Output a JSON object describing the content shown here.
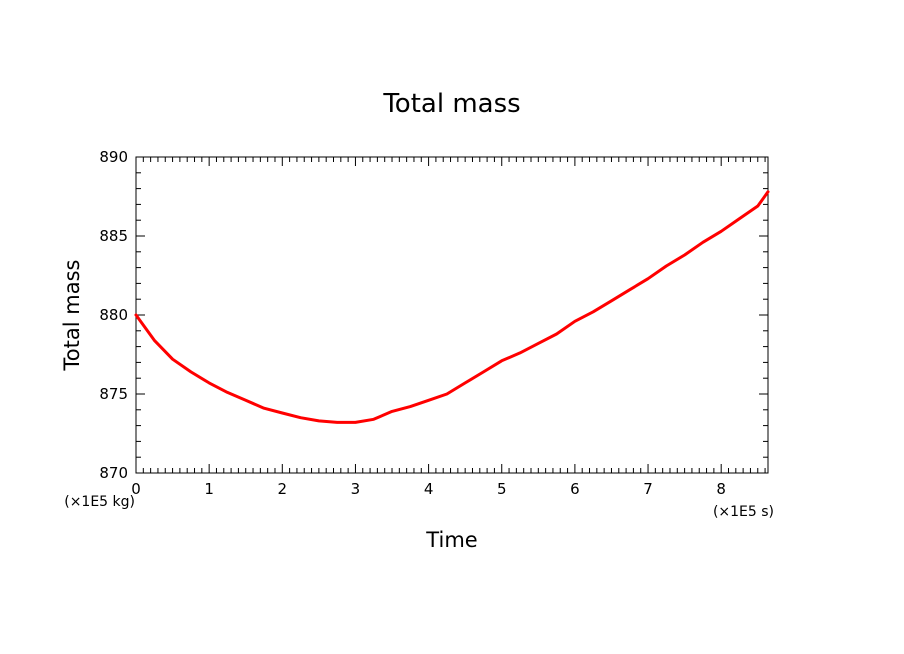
{
  "chart_data": {
    "type": "line",
    "title": "Total mass",
    "xlabel": "Time",
    "ylabel": "Total mass",
    "x_unit": "(×1E5 s)",
    "y_unit": "(×1E5 kg)",
    "xlim": [
      0,
      8.64
    ],
    "ylim": [
      870,
      890
    ],
    "x_ticks": [
      0,
      1,
      2,
      3,
      4,
      5,
      6,
      7,
      8
    ],
    "y_ticks": [
      870,
      875,
      880,
      885,
      890
    ],
    "grid": false,
    "line_color": "#ff0000",
    "series": [
      {
        "x": [
          0,
          0.25,
          0.5,
          0.75,
          1.0,
          1.25,
          1.5,
          1.75,
          2.0,
          2.25,
          2.5,
          2.75,
          3.0,
          3.25,
          3.5,
          3.75,
          4.0,
          4.25,
          4.5,
          4.75,
          5.0,
          5.25,
          5.5,
          5.75,
          6.0,
          6.25,
          6.5,
          6.75,
          7.0,
          7.25,
          7.5,
          7.75,
          8.0,
          8.25,
          8.5,
          8.64
        ],
        "y": [
          880.0,
          878.4,
          877.2,
          876.4,
          875.7,
          875.1,
          874.6,
          874.1,
          873.8,
          873.5,
          873.3,
          873.2,
          873.2,
          873.4,
          873.9,
          874.2,
          874.6,
          875.0,
          875.7,
          876.4,
          877.1,
          877.6,
          878.2,
          878.8,
          879.6,
          880.2,
          880.9,
          881.6,
          882.3,
          883.1,
          883.8,
          884.6,
          885.3,
          886.1,
          886.9,
          887.8
        ]
      }
    ]
  }
}
